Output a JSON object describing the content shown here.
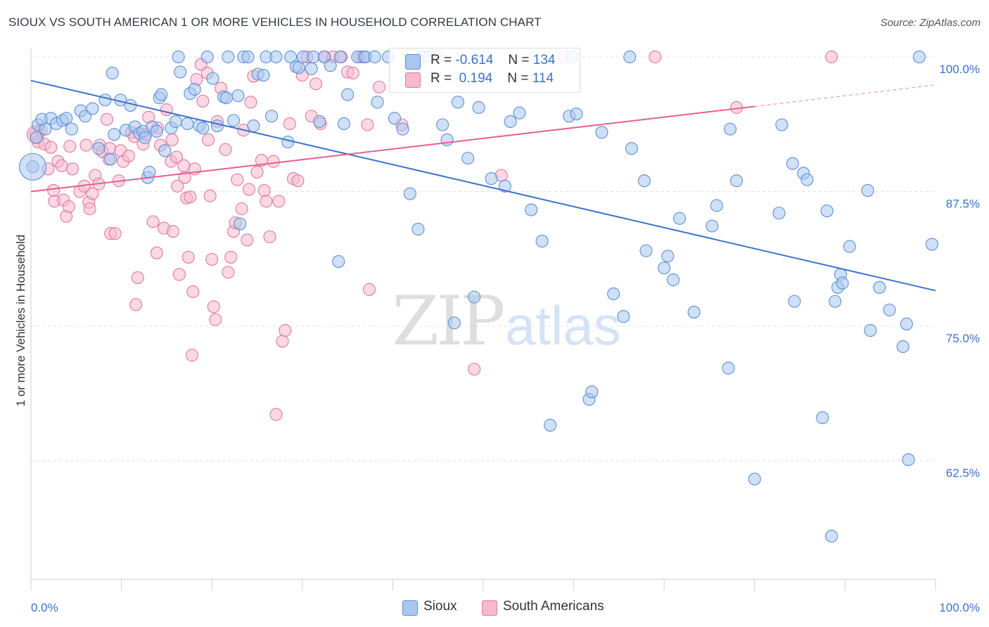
{
  "title": "SIOUX VS SOUTH AMERICAN 1 OR MORE VEHICLES IN HOUSEHOLD CORRELATION CHART",
  "source": "Source: ZipAtlas.com",
  "watermark": {
    "zip": "ZIP",
    "atlas": "atlas"
  },
  "colors": {
    "sioux": "#5b8fd8",
    "sioux_fill": "#aac6ee",
    "south_americans": "#e5779c",
    "south_americans_fill": "#f6b9cd",
    "axis_text": "#3a72c8"
  },
  "legend": {
    "sioux": {
      "r_label": "R =",
      "r_value": "-0.614",
      "n_label": "N =",
      "n_value": "134"
    },
    "south_americans": {
      "r_label": "R =",
      "r_value": "0.194",
      "n_label": "N =",
      "n_value": "114"
    }
  },
  "bottom_legend": {
    "sioux": "Sioux",
    "south_americans": "South Americans"
  },
  "chart_data": {
    "type": "scatter",
    "title": "SIOUX VS SOUTH AMERICAN 1 OR MORE VEHICLES IN HOUSEHOLD CORRELATION CHART",
    "ylabel": "1 or more Vehicles in Household",
    "xlabel": "",
    "x_tick_labels": [
      "0.0%",
      "100.0%"
    ],
    "y_tick_labels": [
      "100.0%",
      "87.5%",
      "75.0%",
      "62.5%"
    ],
    "y_ticks": [
      100.0,
      87.5,
      75.0,
      62.5
    ],
    "xlim": [
      0,
      100
    ],
    "ylim": [
      51.5,
      101.5
    ],
    "grid": true,
    "legend_position": "top-center",
    "series": [
      {
        "name": "Sioux",
        "R": -0.614,
        "N": 134,
        "trend": {
          "x0": 0,
          "y0": 97.8,
          "x1": 100,
          "y1": 78.3
        },
        "points": [
          [
            0.2,
            89.8
          ],
          [
            0.6,
            92.5
          ],
          [
            0.8,
            93.7
          ],
          [
            1.2,
            94.2
          ],
          [
            1.6,
            93.3
          ],
          [
            2.2,
            94.3
          ],
          [
            2.8,
            93.8
          ],
          [
            3.5,
            94.1
          ],
          [
            3.9,
            94.3
          ],
          [
            4.5,
            93.3
          ],
          [
            5.5,
            95.0
          ],
          [
            6.0,
            94.5
          ],
          [
            6.8,
            95.2
          ],
          [
            7.5,
            91.5
          ],
          [
            8.2,
            96.0
          ],
          [
            8.8,
            90.5
          ],
          [
            9.0,
            98.5
          ],
          [
            9.2,
            92.8
          ],
          [
            9.9,
            96.0
          ],
          [
            10.5,
            93.2
          ],
          [
            11.0,
            95.5
          ],
          [
            11.5,
            93.5
          ],
          [
            12.0,
            92.9
          ],
          [
            12.4,
            93.1
          ],
          [
            12.6,
            92.5
          ],
          [
            12.9,
            88.8
          ],
          [
            13.1,
            89.3
          ],
          [
            13.4,
            93.5
          ],
          [
            13.9,
            93.1
          ],
          [
            14.2,
            96.2
          ],
          [
            14.4,
            96.5
          ],
          [
            14.8,
            91.3
          ],
          [
            15.5,
            93.4
          ],
          [
            16.0,
            94.0
          ],
          [
            16.3,
            100.0
          ],
          [
            16.5,
            98.6
          ],
          [
            17.3,
            93.8
          ],
          [
            17.6,
            96.6
          ],
          [
            18.1,
            97.0
          ],
          [
            18.6,
            93.6
          ],
          [
            19.0,
            93.4
          ],
          [
            19.5,
            100.0
          ],
          [
            20.1,
            98.0
          ],
          [
            20.6,
            93.6
          ],
          [
            21.3,
            96.3
          ],
          [
            21.6,
            96.2
          ],
          [
            21.8,
            100.0
          ],
          [
            22.4,
            94.1
          ],
          [
            22.9,
            96.4
          ],
          [
            23.1,
            84.5
          ],
          [
            23.5,
            100.0
          ],
          [
            24.0,
            100.0
          ],
          [
            24.6,
            93.6
          ],
          [
            25.1,
            98.4
          ],
          [
            25.7,
            98.3
          ],
          [
            26.0,
            100.0
          ],
          [
            26.6,
            94.5
          ],
          [
            27.1,
            100.0
          ],
          [
            28.4,
            92.1
          ],
          [
            28.7,
            100.0
          ],
          [
            29.3,
            99.1
          ],
          [
            29.6,
            99.0
          ],
          [
            30.1,
            100.0
          ],
          [
            31.0,
            98.9
          ],
          [
            31.2,
            100.0
          ],
          [
            31.9,
            94.0
          ],
          [
            32.4,
            100.0
          ],
          [
            33.1,
            99.2
          ],
          [
            34.2,
            100.0
          ],
          [
            34.6,
            93.8
          ],
          [
            35.0,
            96.5
          ],
          [
            34.0,
            81.0
          ],
          [
            36.1,
            100.0
          ],
          [
            36.8,
            100.0
          ],
          [
            37.0,
            100.0
          ],
          [
            38.0,
            100.0
          ],
          [
            38.3,
            95.8
          ],
          [
            39.5,
            100.0
          ],
          [
            40.2,
            94.3
          ],
          [
            41.1,
            93.3
          ],
          [
            41.9,
            87.3
          ],
          [
            42.8,
            84.0
          ],
          [
            43.3,
            100.0
          ],
          [
            44.0,
            100.0
          ],
          [
            45.0,
            100.0
          ],
          [
            45.5,
            93.7
          ],
          [
            46.0,
            92.3
          ],
          [
            46.8,
            75.3
          ],
          [
            47.2,
            95.8
          ],
          [
            48.3,
            90.6
          ],
          [
            49.0,
            77.7
          ],
          [
            49.5,
            95.3
          ],
          [
            50.9,
            88.7
          ],
          [
            52.4,
            88.0
          ],
          [
            53.0,
            94.0
          ],
          [
            54.0,
            94.8
          ],
          [
            55.3,
            85.8
          ],
          [
            56.5,
            82.9
          ],
          [
            57.4,
            65.8
          ],
          [
            59.5,
            94.5
          ],
          [
            59.8,
            100.0
          ],
          [
            60.3,
            94.7
          ],
          [
            61.7,
            68.2
          ],
          [
            62.0,
            68.9
          ],
          [
            63.1,
            93.0
          ],
          [
            64.4,
            78.0
          ],
          [
            65.5,
            75.9
          ],
          [
            66.2,
            100.0
          ],
          [
            66.4,
            91.5
          ],
          [
            67.8,
            88.5
          ],
          [
            68.0,
            82.0
          ],
          [
            70.0,
            80.4
          ],
          [
            70.4,
            81.5
          ],
          [
            71.0,
            79.3
          ],
          [
            71.7,
            85.0
          ],
          [
            73.3,
            76.3
          ],
          [
            75.3,
            84.3
          ],
          [
            75.8,
            86.2
          ],
          [
            77.1,
            71.1
          ],
          [
            77.3,
            93.3
          ],
          [
            78.0,
            88.5
          ],
          [
            80.0,
            60.8
          ],
          [
            82.7,
            85.5
          ],
          [
            83.0,
            93.7
          ],
          [
            84.2,
            90.1
          ],
          [
            84.4,
            77.3
          ],
          [
            85.4,
            89.2
          ],
          [
            85.8,
            88.6
          ],
          [
            88.0,
            85.7
          ],
          [
            88.9,
            77.3
          ],
          [
            89.2,
            78.6
          ],
          [
            89.5,
            79.8
          ],
          [
            89.7,
            79.0
          ],
          [
            87.5,
            66.5
          ],
          [
            88.5,
            55.5
          ],
          [
            90.5,
            82.4
          ],
          [
            92.5,
            87.6
          ],
          [
            92.8,
            74.6
          ],
          [
            93.8,
            78.6
          ],
          [
            94.9,
            76.5
          ],
          [
            96.4,
            73.1
          ],
          [
            96.8,
            75.2
          ],
          [
            97.0,
            62.6
          ],
          [
            98.2,
            100.0
          ],
          [
            99.6,
            82.6
          ]
        ]
      },
      {
        "name": "South Americans",
        "R": 0.194,
        "N": 114,
        "trend": {
          "x0": 0,
          "y0": 87.5,
          "x1": 80,
          "y1": 95.4,
          "dash_to_x": 100,
          "dash_to_y": 97.4
        },
        "points": [
          [
            0.5,
            92.8
          ],
          [
            0.8,
            92.1
          ],
          [
            1.1,
            93.2
          ],
          [
            1.5,
            91.9
          ],
          [
            1.9,
            89.6
          ],
          [
            2.2,
            91.6
          ],
          [
            2.5,
            87.6
          ],
          [
            2.6,
            86.6
          ],
          [
            3.0,
            90.3
          ],
          [
            3.4,
            89.9
          ],
          [
            3.6,
            86.7
          ],
          [
            3.9,
            85.2
          ],
          [
            4.2,
            86.1
          ],
          [
            4.3,
            91.7
          ],
          [
            4.6,
            89.6
          ],
          [
            5.4,
            87.5
          ],
          [
            5.9,
            88.0
          ],
          [
            6.1,
            91.8
          ],
          [
            6.4,
            86.5
          ],
          [
            6.5,
            85.9
          ],
          [
            6.8,
            87.3
          ],
          [
            7.1,
            89.0
          ],
          [
            7.5,
            88.2
          ],
          [
            7.6,
            91.8
          ],
          [
            7.9,
            91.2
          ],
          [
            8.4,
            94.2
          ],
          [
            8.6,
            90.5
          ],
          [
            8.7,
            91.5
          ],
          [
            8.8,
            83.6
          ],
          [
            9.3,
            83.6
          ],
          [
            9.7,
            88.5
          ],
          [
            9.9,
            91.3
          ],
          [
            10.2,
            90.3
          ],
          [
            10.8,
            90.8
          ],
          [
            11.1,
            93.0
          ],
          [
            11.4,
            92.6
          ],
          [
            11.6,
            77.0
          ],
          [
            11.8,
            79.5
          ],
          [
            12.4,
            91.9
          ],
          [
            12.7,
            92.8
          ],
          [
            13.0,
            94.4
          ],
          [
            13.5,
            84.7
          ],
          [
            13.9,
            81.8
          ],
          [
            14.0,
            93.4
          ],
          [
            14.3,
            91.8
          ],
          [
            14.7,
            84.1
          ],
          [
            15.0,
            95.1
          ],
          [
            15.5,
            90.3
          ],
          [
            15.6,
            92.3
          ],
          [
            15.7,
            83.8
          ],
          [
            16.1,
            90.7
          ],
          [
            16.2,
            88.0
          ],
          [
            16.4,
            79.8
          ],
          [
            16.9,
            89.9
          ],
          [
            17.0,
            88.8
          ],
          [
            17.2,
            86.9
          ],
          [
            17.4,
            81.4
          ],
          [
            17.6,
            87.0
          ],
          [
            17.8,
            72.3
          ],
          [
            17.9,
            78.2
          ],
          [
            18.1,
            89.6
          ],
          [
            18.3,
            97.9
          ],
          [
            18.8,
            99.3
          ],
          [
            19.0,
            95.9
          ],
          [
            19.5,
            98.5
          ],
          [
            19.6,
            92.3
          ],
          [
            19.8,
            87.1
          ],
          [
            20.0,
            81.2
          ],
          [
            20.2,
            76.8
          ],
          [
            20.4,
            75.6
          ],
          [
            20.6,
            94.0
          ],
          [
            21.0,
            97.1
          ],
          [
            21.5,
            91.4
          ],
          [
            21.8,
            80.0
          ],
          [
            22.1,
            81.4
          ],
          [
            22.4,
            83.8
          ],
          [
            22.6,
            84.6
          ],
          [
            22.8,
            88.6
          ],
          [
            23.3,
            85.9
          ],
          [
            23.5,
            93.2
          ],
          [
            23.9,
            83.0
          ],
          [
            24.1,
            87.7
          ],
          [
            24.3,
            95.8
          ],
          [
            24.6,
            98.2
          ],
          [
            25.0,
            89.3
          ],
          [
            25.5,
            90.4
          ],
          [
            25.8,
            87.6
          ],
          [
            26.0,
            86.6
          ],
          [
            26.4,
            83.3
          ],
          [
            26.8,
            90.3
          ],
          [
            27.1,
            66.8
          ],
          [
            27.4,
            86.6
          ],
          [
            27.8,
            73.6
          ],
          [
            28.1,
            74.6
          ],
          [
            28.6,
            93.8
          ],
          [
            29.0,
            88.7
          ],
          [
            29.5,
            88.5
          ],
          [
            30.0,
            98.3
          ],
          [
            30.5,
            100.0
          ],
          [
            31.0,
            94.5
          ],
          [
            31.5,
            97.5
          ],
          [
            32.0,
            93.8
          ],
          [
            32.5,
            100.0
          ],
          [
            33.4,
            100.0
          ],
          [
            34.3,
            100.0
          ],
          [
            35.0,
            98.6
          ],
          [
            35.6,
            98.5
          ],
          [
            36.4,
            100.0
          ],
          [
            37.2,
            93.7
          ],
          [
            37.4,
            78.4
          ],
          [
            38.5,
            97.2
          ],
          [
            41.0,
            93.7
          ],
          [
            49.0,
            71.0
          ],
          [
            52.0,
            89.0
          ],
          [
            59.0,
            100.0
          ],
          [
            69.0,
            100.0
          ],
          [
            78.0,
            95.3
          ],
          [
            88.5,
            100.0
          ]
        ]
      }
    ]
  }
}
